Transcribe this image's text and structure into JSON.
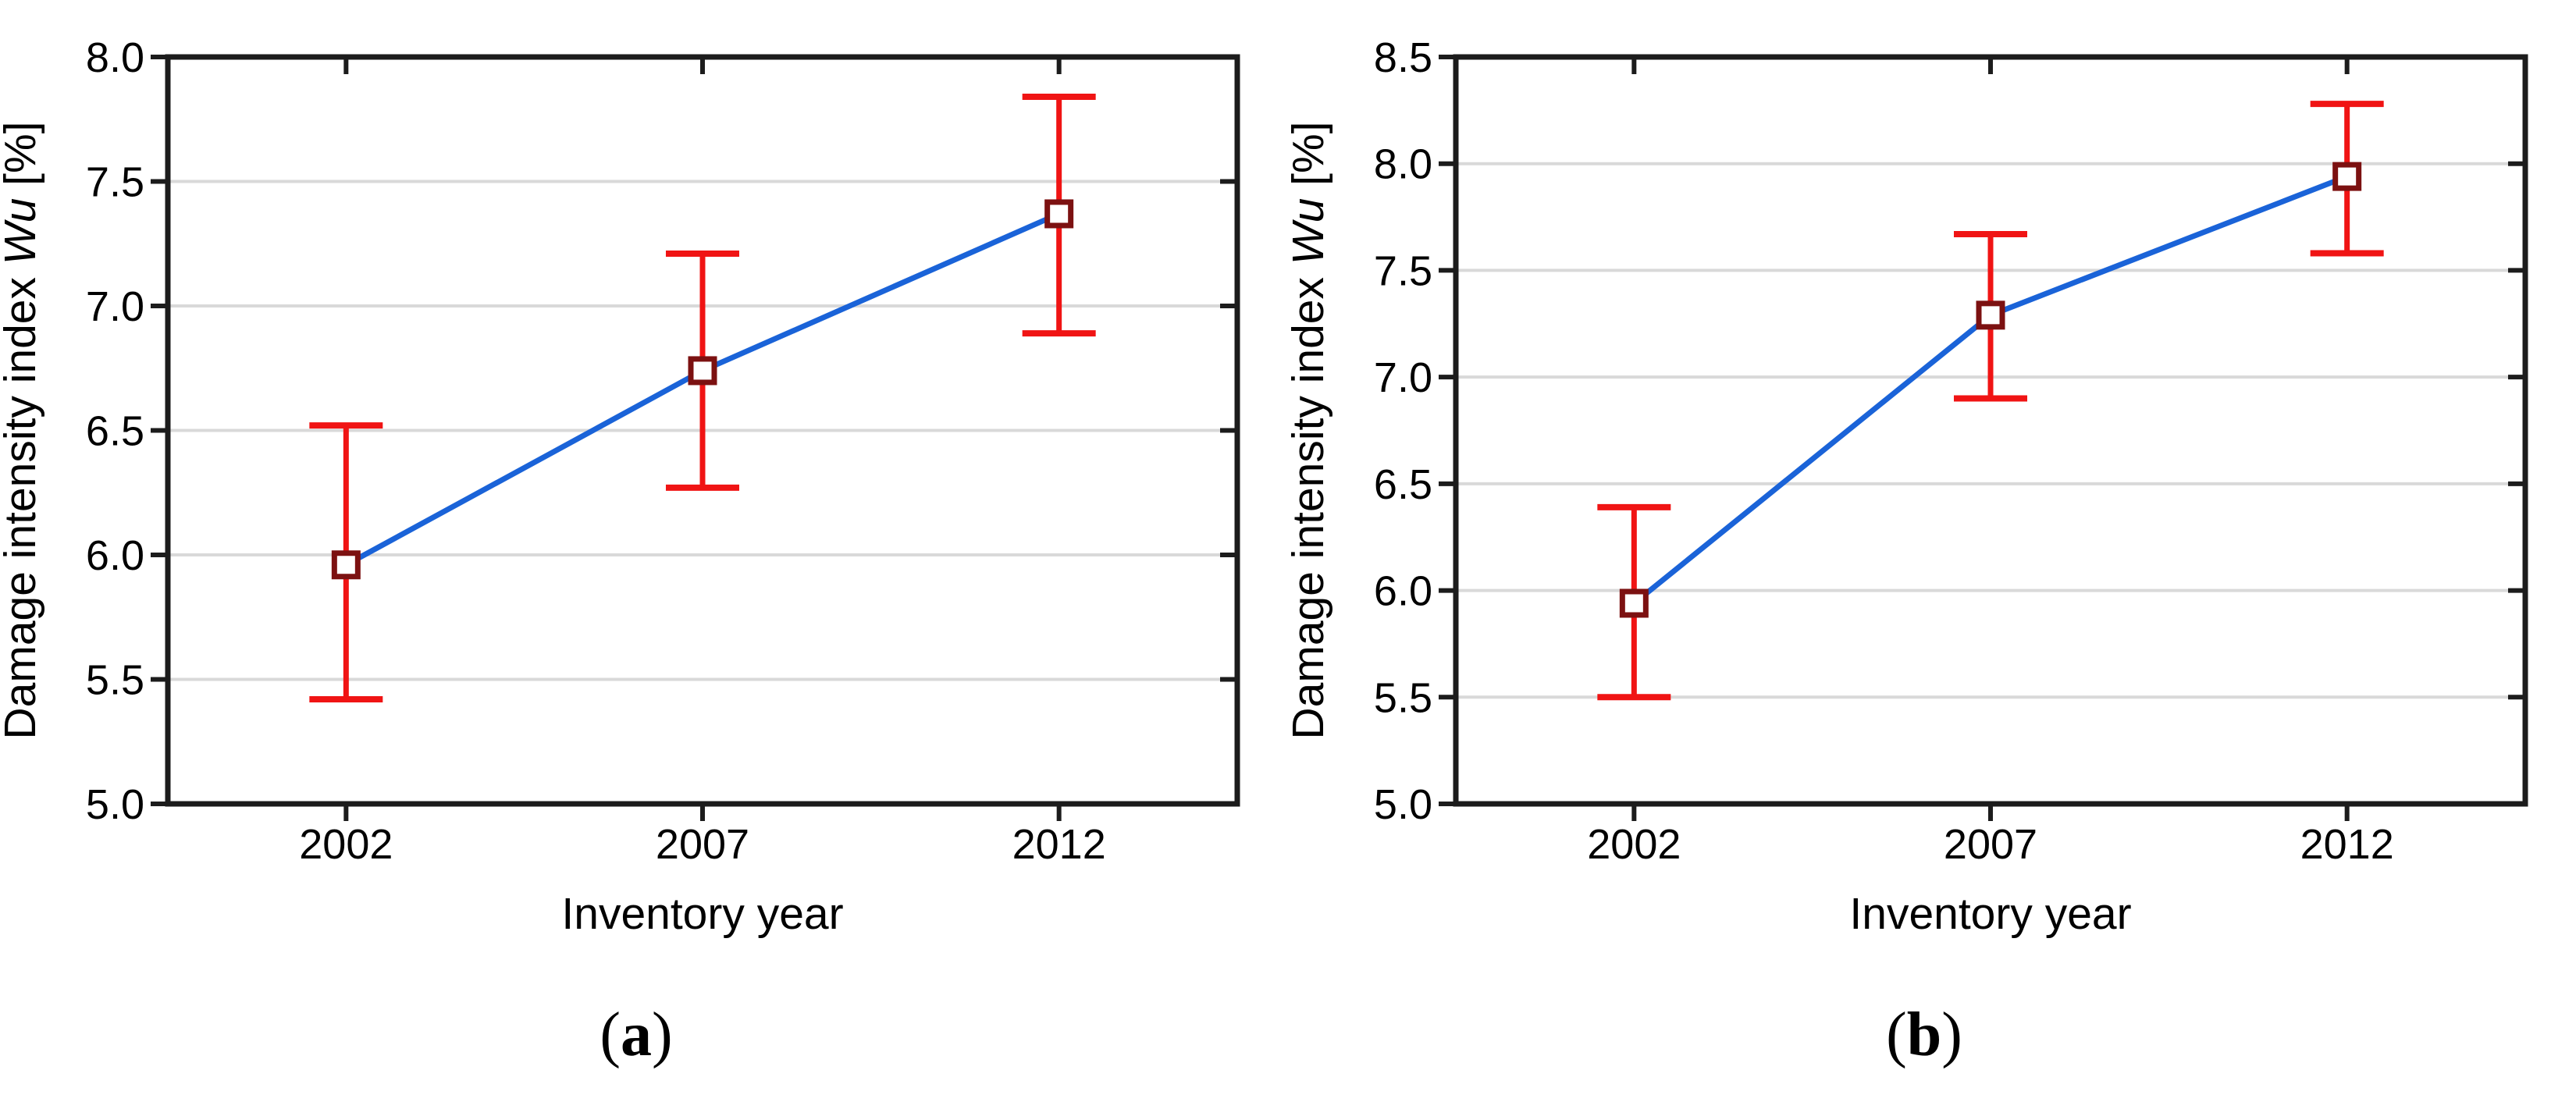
{
  "figure": {
    "description": "Two-panel line chart of damage intensity index over inventory years with red error bars",
    "panel_count": 2
  },
  "colors": {
    "background": "#ffffff",
    "axis_frame": "#1c1c1c",
    "gridline": "#d9d9d9",
    "series_line": "#1a63d8",
    "error_bar": "#f01414",
    "marker_stroke": "#7c1111",
    "marker_fill": "#ffffff",
    "text": "#000000"
  },
  "chart_data": [
    {
      "panel": "a",
      "type": "line",
      "title": "",
      "xlabel": "Inventory year",
      "ylabel": "Damage intensity index Wu [%]",
      "ylabel_parts": {
        "prefix": "Damage intensity index ",
        "italic": "Wu",
        "suffix": " [%]"
      },
      "caption": {
        "open": "(",
        "letter": "a",
        "close": ")"
      },
      "categories": [
        "2002",
        "2007",
        "2012"
      ],
      "series": [
        {
          "name": "Damage intensity index Wu",
          "values": [
            5.96,
            6.74,
            7.37
          ],
          "ci_low": [
            5.42,
            6.27,
            6.89
          ],
          "ci_high": [
            6.52,
            7.21,
            7.84
          ]
        }
      ],
      "ylim": [
        5.0,
        8.0
      ],
      "ytick_step": 0.5,
      "ytick_labels": [
        "5.0",
        "5.5",
        "6.0",
        "6.5",
        "7.0",
        "7.5",
        "8.0"
      ],
      "grid": true,
      "legend_position": "none"
    },
    {
      "panel": "b",
      "type": "line",
      "title": "",
      "xlabel": "Inventory year",
      "ylabel": "Damage intensity index Wu [%]",
      "ylabel_parts": {
        "prefix": "Damage intensity index ",
        "italic": "Wu",
        "suffix": " [%]"
      },
      "caption": {
        "open": "(",
        "letter": "b",
        "close": ")"
      },
      "categories": [
        "2002",
        "2007",
        "2012"
      ],
      "series": [
        {
          "name": "Damage intensity index Wu",
          "values": [
            5.94,
            7.29,
            7.94
          ],
          "ci_low": [
            5.5,
            6.9,
            7.58
          ],
          "ci_high": [
            6.39,
            7.67,
            8.28
          ]
        }
      ],
      "ylim": [
        5.0,
        8.5
      ],
      "ytick_step": 0.5,
      "ytick_labels": [
        "5.0",
        "5.5",
        "6.0",
        "6.5",
        "7.0",
        "7.5",
        "8.0",
        "8.5"
      ],
      "grid": true,
      "legend_position": "none"
    }
  ]
}
